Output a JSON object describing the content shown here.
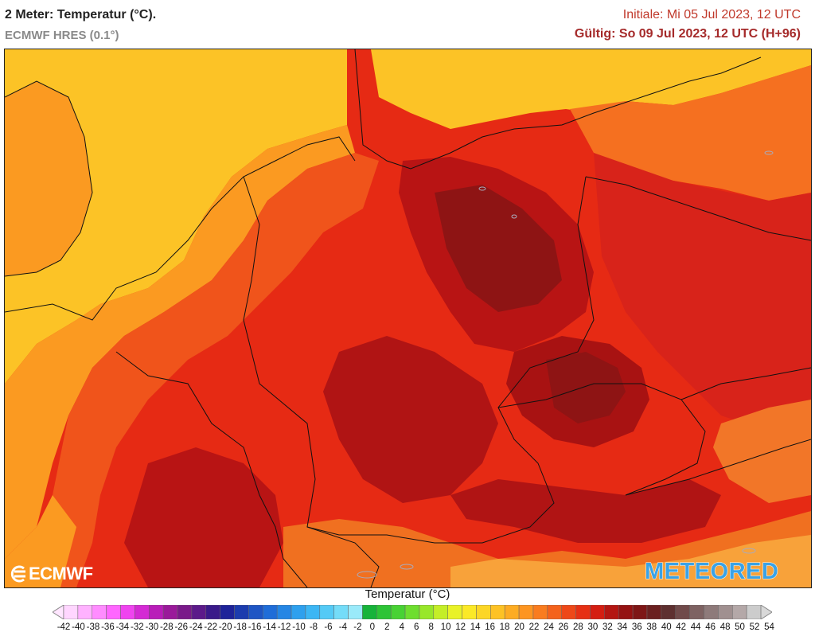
{
  "header": {
    "title": "2 Meter: Temperatur (°C).",
    "model": "ECMWF HRES (0.1°)",
    "initial": "Initiale: Mi 05 Jul 2023, 12 UTC",
    "valid": "Gültig: So 09 Jul 2023, 12 UTC (H+96)"
  },
  "logos": {
    "left": "ECMWF",
    "right": "METEORED"
  },
  "legend": {
    "title": "Temperatur (°C)",
    "ticks": [
      "-42",
      "-40",
      "-38",
      "-36",
      "-34",
      "-32",
      "-30",
      "-28",
      "-26",
      "-24",
      "-22",
      "-20",
      "-18",
      "-16",
      "-14",
      "-12",
      "-10",
      "-8",
      "-6",
      "-4",
      "-2",
      "0",
      "2",
      "4",
      "6",
      "8",
      "10",
      "12",
      "14",
      "16",
      "18",
      "20",
      "22",
      "24",
      "26",
      "28",
      "30",
      "32",
      "34",
      "36",
      "38",
      "40",
      "42",
      "44",
      "46",
      "48",
      "50",
      "52",
      "54"
    ],
    "colors": [
      "#ffd6ff",
      "#ffb2ff",
      "#ff8cff",
      "#ff66ff",
      "#ef44ef",
      "#d42ad4",
      "#b91db9",
      "#9a1a9a",
      "#7a1a8a",
      "#5c1a8a",
      "#3a1a8a",
      "#1e2399",
      "#1c3cae",
      "#1e55c4",
      "#1f6dd8",
      "#2586e4",
      "#2ea0ee",
      "#3cb6f4",
      "#54caf6",
      "#74dcf8",
      "#9aeafa",
      "#16b33a",
      "#2dc436",
      "#48d234",
      "#6ede2f",
      "#98e72a",
      "#c4ee27",
      "#e9f227",
      "#fbe927",
      "#fcd626",
      "#fdc225",
      "#fdac23",
      "#fd9521",
      "#f97c1f",
      "#f4621c",
      "#ee4818",
      "#e63014",
      "#d41e12",
      "#b41612",
      "#951212",
      "#7e1616",
      "#6b2020",
      "#5e3030",
      "#704a4a",
      "#7e6262",
      "#8e7a7a",
      "#a09090",
      "#b4a8a8",
      "#cccccc"
    ]
  },
  "map": {
    "region": "Central Europe",
    "colors": {
      "cool": "#fcc326",
      "warm": "#fb9a21",
      "hot": "#f0541b",
      "hotter": "#e62a14",
      "hottest": "#c81a12",
      "extreme": "#a81212",
      "dark": "#8e1414"
    }
  }
}
